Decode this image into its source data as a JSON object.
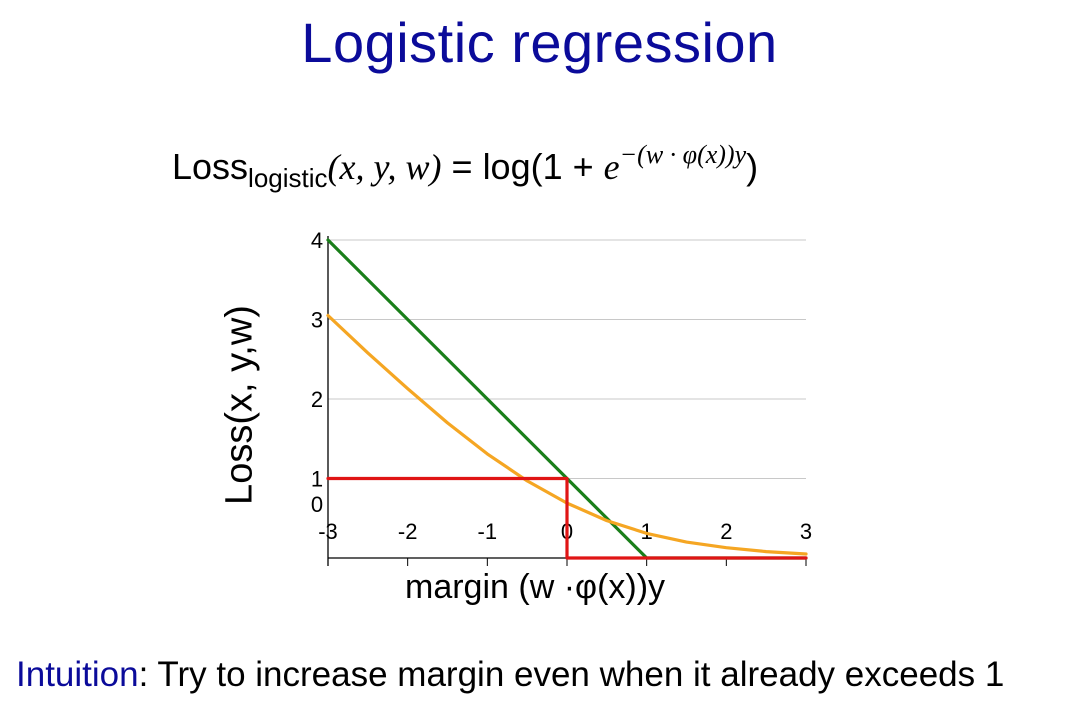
{
  "slide": {
    "title": "Logistic regression",
    "formula": {
      "loss_text": "Loss",
      "subscript": "logistic",
      "args": "(x, y, w)",
      "equals": "=",
      "rhs_prefix": "log(1 +",
      "exp_base": "e",
      "exponent": "−(w · φ(x))y",
      "rhs_suffix": ")"
    },
    "intuition_label": "Intuition",
    "intuition_text": ":  Try to increase margin even when it already exceeds 1"
  },
  "chart_data": {
    "type": "line",
    "xlabel": "margin  (w ·φ(x))y",
    "ylabel": "Loss(x, y,w)",
    "xlim": [
      -3,
      3
    ],
    "ylim": [
      0,
      4
    ],
    "x_ticks": [
      "-3",
      "-2",
      "-1",
      "0",
      "1",
      "2",
      "3"
    ],
    "y_ticks": [
      "0",
      "1",
      "2",
      "3",
      "4"
    ],
    "grid": "horizontal",
    "legend": "none",
    "series": [
      {
        "color": "#1a7f1a",
        "x": [
          -3,
          1,
          3
        ],
        "y": [
          4,
          0,
          0
        ]
      },
      {
        "color": "#f5a623",
        "x": [
          -3,
          -2.5,
          -2,
          -1.5,
          -1,
          -0.5,
          0,
          0.5,
          1,
          1.5,
          2,
          2.5,
          3
        ],
        "y": [
          3.05,
          2.58,
          2.13,
          1.7,
          1.31,
          0.97,
          0.69,
          0.47,
          0.31,
          0.2,
          0.13,
          0.08,
          0.05
        ]
      },
      {
        "color": "#e01515",
        "x": [
          -3,
          0,
          0,
          3
        ],
        "y": [
          1,
          1,
          0,
          0
        ]
      }
    ]
  }
}
